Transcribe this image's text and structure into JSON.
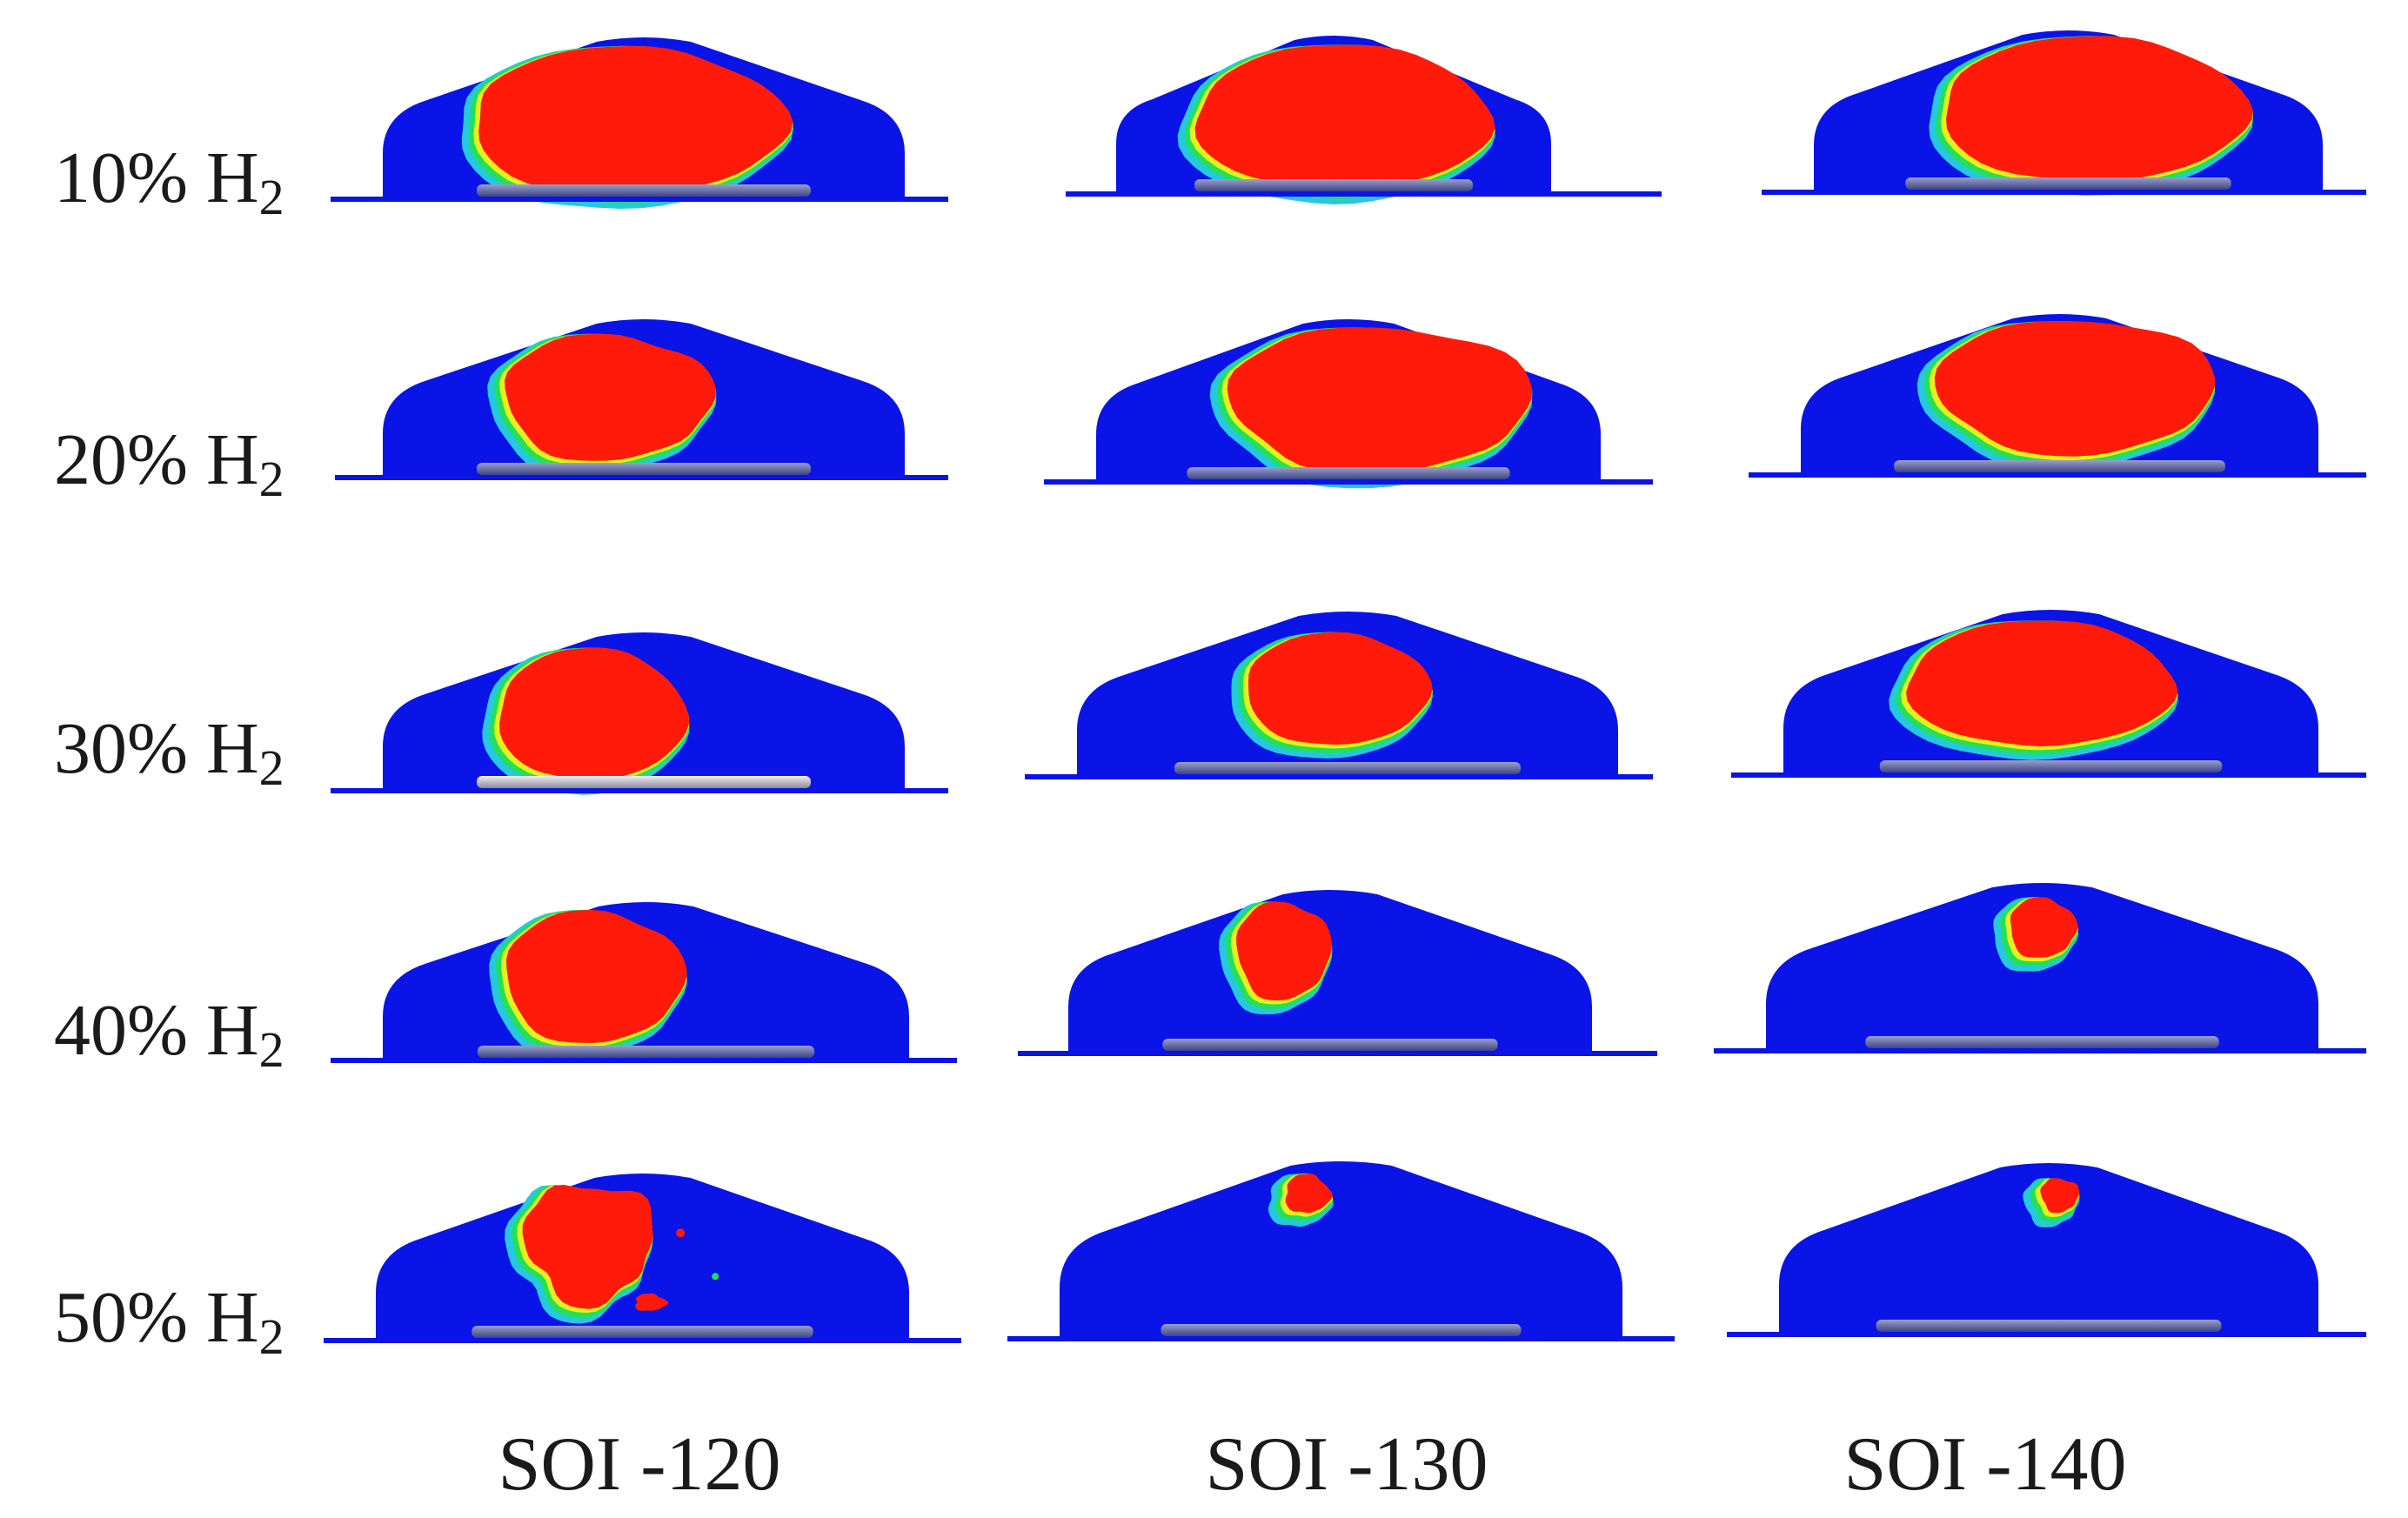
{
  "row_labels": [
    {
      "main": "10% H",
      "sub": "2"
    },
    {
      "main": "20% H",
      "sub": "2"
    },
    {
      "main": "30% H",
      "sub": "2"
    },
    {
      "main": "40% H",
      "sub": "2"
    },
    {
      "main": "50% H",
      "sub": "2"
    }
  ],
  "column_labels": [
    "SOI -120",
    "SOI -130",
    "SOI -140"
  ],
  "colors": {
    "chamber_blue": "#0a14e6",
    "plume_red": "#ff1a0a",
    "edge_yellow": "#e8f01a",
    "edge_green": "#22e05a",
    "edge_cyan": "#26c8e0",
    "piston_grey": "#6c74a8"
  }
}
